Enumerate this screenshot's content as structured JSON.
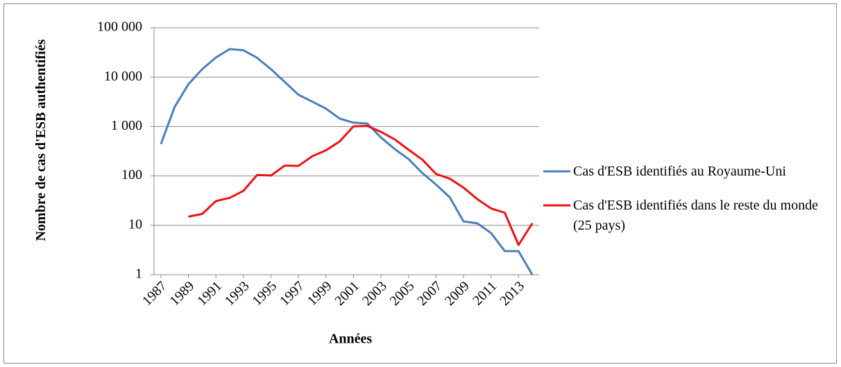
{
  "chart_data": {
    "type": "line",
    "x_label": "Années",
    "y_label": "Nombre de cas d'ESB authentifiés",
    "x": [
      1987,
      1988,
      1989,
      1990,
      1991,
      1992,
      1993,
      1994,
      1995,
      1996,
      1997,
      1998,
      1999,
      2000,
      2001,
      2002,
      2003,
      2004,
      2005,
      2006,
      2007,
      2008,
      2009,
      2010,
      2011,
      2012,
      2013,
      2014
    ],
    "xlim": [
      1986.5,
      2014.5
    ],
    "xticks": [
      1987,
      1989,
      1991,
      1993,
      1995,
      1997,
      1999,
      2001,
      2003,
      2005,
      2007,
      2009,
      2011,
      2013
    ],
    "ylim": [
      1,
      100000
    ],
    "yticks": [
      {
        "value": 1,
        "label": "1"
      },
      {
        "value": 10,
        "label": "10"
      },
      {
        "value": 100,
        "label": "100"
      },
      {
        "value": 1000,
        "label": "1 000"
      },
      {
        "value": 10000,
        "label": "10 000"
      },
      {
        "value": 100000,
        "label": "100 000"
      }
    ],
    "log_scale": true,
    "grid": true,
    "legend": "right",
    "series": [
      {
        "name": "Cas d'ESB identifiés au Royaume-Uni",
        "color": "#4a7ebb",
        "values": [
          442,
          2500,
          7200,
          14500,
          25000,
          37000,
          35000,
          24500,
          14500,
          8000,
          4400,
          3200,
          2300,
          1450,
          1200,
          1150,
          600,
          350,
          220,
          115,
          67,
          37,
          12,
          11,
          7,
          3,
          3,
          1
        ]
      },
      {
        "name": "Cas d'ESB identifiés dans le reste du monde (25 pays)",
        "color": "#ee1111",
        "values": [
          null,
          null,
          15,
          17,
          31,
          36,
          50,
          105,
          102,
          162,
          160,
          250,
          330,
          500,
          1010,
          1030,
          780,
          550,
          340,
          215,
          110,
          88,
          58,
          34,
          22,
          18,
          4,
          11
        ]
      }
    ]
  }
}
